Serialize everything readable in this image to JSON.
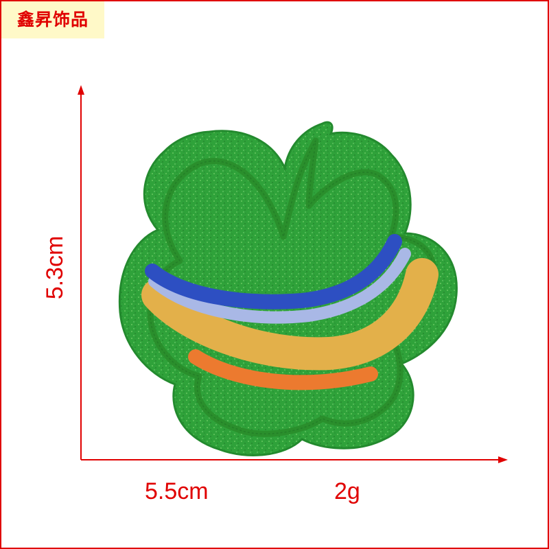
{
  "brand": {
    "text": "鑫昇饰品"
  },
  "dimensions": {
    "height": "5.3cm",
    "width": "5.5cm",
    "weight": "2g"
  },
  "colors": {
    "frame": "#e00000",
    "brand_bg": "#fff9c8",
    "glitter_green": "#2fa23a",
    "stitch_green": "#2a8f2c",
    "rainbow": [
      "#2d4fc2",
      "#a9b8e6",
      "#e3b04a",
      "#ec7a2f"
    ]
  }
}
